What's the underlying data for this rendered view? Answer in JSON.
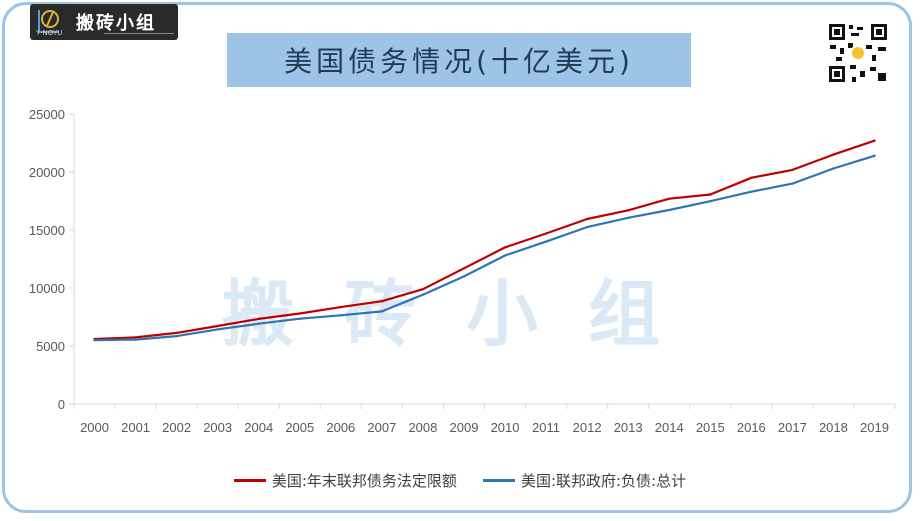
{
  "logo": {
    "name": "搬砖小组",
    "sub": "Y NOYU"
  },
  "watermark": "搬砖小组",
  "chart_data": {
    "type": "line",
    "title": "美国债务情况(十亿美元)",
    "xlabel": "",
    "ylabel": "",
    "x": [
      "2000",
      "2001",
      "2002",
      "2003",
      "2004",
      "2005",
      "2006",
      "2007",
      "2008",
      "2009",
      "2010",
      "2011",
      "2012",
      "2013",
      "2014",
      "2015",
      "2016",
      "2017",
      "2018",
      "2019"
    ],
    "ylim": [
      0,
      25000
    ],
    "yticks": [
      0,
      5000,
      10000,
      15000,
      20000,
      25000
    ],
    "grid": false,
    "legend_position": "bottom",
    "series": [
      {
        "name": "美国:年末联邦债务法定限额",
        "color": "#c00000",
        "values": [
          5600,
          5740,
          6130,
          6720,
          7340,
          7800,
          8350,
          8860,
          9900,
          11700,
          13500,
          14700,
          15950,
          16700,
          17700,
          18060,
          19500,
          20180,
          21500,
          22700
        ]
      },
      {
        "name": "美国:联邦政府:负债:总计",
        "color": "#2e75b6",
        "values": [
          5500,
          5550,
          5850,
          6430,
          6920,
          7350,
          7650,
          7980,
          9420,
          11000,
          12800,
          14000,
          15250,
          16050,
          16720,
          17480,
          18300,
          19000,
          20300,
          21400
        ]
      }
    ]
  }
}
